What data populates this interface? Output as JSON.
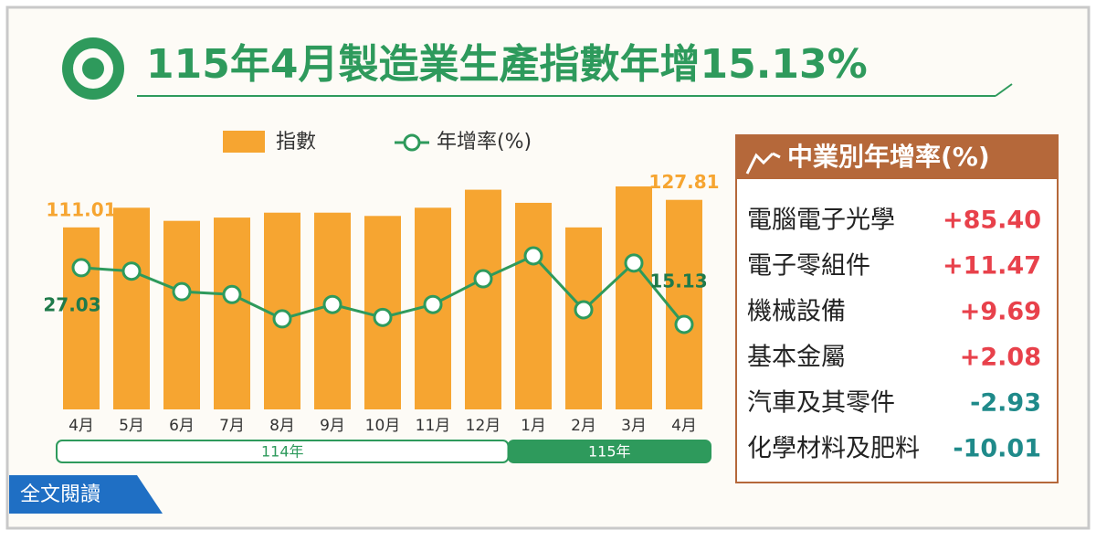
{
  "chart_data": {
    "type": "bar-line",
    "title": "115年4月製造業生產指數年增15.13%",
    "categories": [
      "4月",
      "5月",
      "6月",
      "7月",
      "8月",
      "9月",
      "10月",
      "11月",
      "12月",
      "1月",
      "2月",
      "3月",
      "4月"
    ],
    "series": [
      {
        "name": "指數",
        "type": "bar",
        "color": "#f6a531",
        "values": [
          111.01,
          123,
          115,
          117,
          120,
          120,
          118,
          123,
          134,
          126,
          111,
          136,
          127.81
        ]
      },
      {
        "name": "年增率(%)",
        "type": "line",
        "color": "#2e9a5c",
        "values": [
          27.03,
          26.3,
          22.0,
          21.4,
          16.3,
          19.3,
          16.6,
          19.3,
          24.7,
          29.5,
          18.2,
          28.0,
          15.13
        ]
      }
    ],
    "year_groups": [
      {
        "label": "114年",
        "count": 9
      },
      {
        "label": "115年",
        "count": 4
      }
    ]
  },
  "industry_growth": {
    "title": "中業別年增率(%)",
    "rows": [
      {
        "name": "電腦電子光學",
        "value": "+85.40",
        "color": "#e8414b"
      },
      {
        "name": "電子零組件",
        "value": "+11.47",
        "color": "#e8414b"
      },
      {
        "name": "機械設備",
        "value": "+9.69",
        "color": "#e8414b"
      },
      {
        "name": "基本金屬",
        "value": "+2.08",
        "color": "#e8414b"
      },
      {
        "name": "汽車及其零件",
        "value": "-2.93",
        "color": "#1f8a8a"
      },
      {
        "name": "化學材料及肥料",
        "value": "-10.01",
        "color": "#1f8a8a"
      }
    ]
  },
  "button": "全文閱讀"
}
